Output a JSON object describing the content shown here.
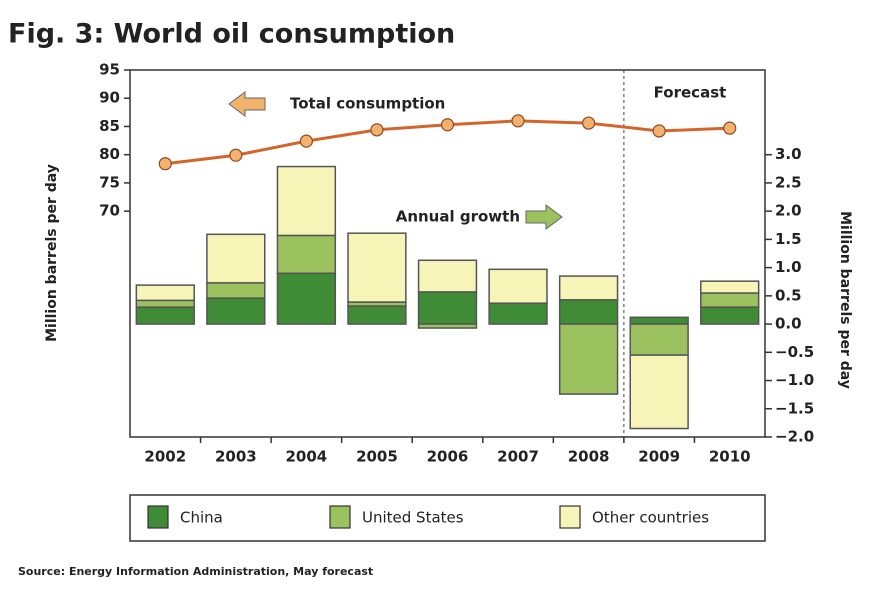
{
  "chart_data": {
    "type": "bar",
    "title": "Fig. 3: World oil consumption",
    "ylabel": "Million barrels per day",
    "y2label": "Million barrels per day",
    "categories": [
      "2002",
      "2003",
      "2004",
      "2005",
      "2006",
      "2007",
      "2008",
      "2009",
      "2010"
    ],
    "series": [
      {
        "name": "China",
        "color": "#3f8b36",
        "axis": "y2",
        "values": [
          0.3,
          0.46,
          0.9,
          0.32,
          0.57,
          0.37,
          0.43,
          0.12,
          0.3
        ]
      },
      {
        "name": "United States",
        "color": "#9cc25f",
        "axis": "y2",
        "values": [
          0.12,
          0.27,
          0.67,
          0.07,
          -0.07,
          0,
          -1.24,
          -0.55,
          0.25
        ]
      },
      {
        "name": "Other countries",
        "color": "#f7f4b8",
        "axis": "y2",
        "values": [
          0.27,
          0.86,
          1.22,
          1.22,
          0.56,
          0.6,
          0.42,
          -1.3,
          0.21
        ]
      },
      {
        "name": "Total consumption",
        "type": "line",
        "color": "#d5642a",
        "axis": "y",
        "values": [
          78.4,
          79.9,
          82.4,
          84.4,
          85.3,
          86.0,
          85.6,
          84.2,
          84.7
        ]
      }
    ],
    "ylim": [
      30,
      95
    ],
    "yticks": [
      70,
      75,
      80,
      85,
      90,
      95
    ],
    "y2lim": [
      -2.0,
      4.5
    ],
    "y2ticks": [
      {
        "value": 3,
        "label": "3.0"
      },
      {
        "value": 2.5,
        "label": "2.5"
      },
      {
        "value": 2,
        "label": "2.0"
      },
      {
        "value": 1.5,
        "label": "1.5"
      },
      {
        "value": 1,
        "label": "1.0"
      },
      {
        "value": 0.5,
        "label": "0.5"
      },
      {
        "value": 0,
        "label": "0.0"
      },
      {
        "value": -0.5,
        "label": "−0.5"
      },
      {
        "value": -1,
        "label": "−1.0"
      },
      {
        "value": -1.5,
        "label": "−1.5"
      },
      {
        "value": -2,
        "label": "−2.0"
      }
    ],
    "annotations": {
      "growth": "Annual growth",
      "forecast": "Forecast"
    },
    "source": "Source: Energy Information Administration, May forecast"
  }
}
